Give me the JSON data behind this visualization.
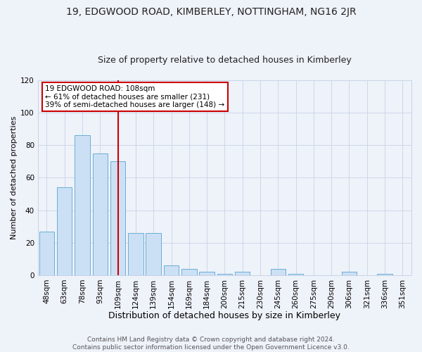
{
  "title": "19, EDGWOOD ROAD, KIMBERLEY, NOTTINGHAM, NG16 2JR",
  "subtitle": "Size of property relative to detached houses in Kimberley",
  "xlabel": "Distribution of detached houses by size in Kimberley",
  "ylabel": "Number of detached properties",
  "bar_labels": [
    "48sqm",
    "63sqm",
    "78sqm",
    "93sqm",
    "109sqm",
    "124sqm",
    "139sqm",
    "154sqm",
    "169sqm",
    "184sqm",
    "200sqm",
    "215sqm",
    "230sqm",
    "245sqm",
    "260sqm",
    "275sqm",
    "290sqm",
    "306sqm",
    "321sqm",
    "336sqm",
    "351sqm"
  ],
  "bar_values": [
    27,
    54,
    86,
    75,
    70,
    26,
    26,
    6,
    4,
    2,
    1,
    2,
    0,
    4,
    1,
    0,
    0,
    2,
    0,
    1,
    0
  ],
  "bar_color": "#cce0f5",
  "bar_edge_color": "#6aaed6",
  "vline_x_idx": 4,
  "vline_color": "#cc0000",
  "ylim": [
    0,
    120
  ],
  "yticks": [
    0,
    20,
    40,
    60,
    80,
    100,
    120
  ],
  "annotation_title": "19 EDGWOOD ROAD: 108sqm",
  "annotation_line1": "← 61% of detached houses are smaller (231)",
  "annotation_line2": "39% of semi-detached houses are larger (148) →",
  "annotation_box_color": "#ffffff",
  "annotation_box_edge": "#cc0000",
  "footer_line1": "Contains HM Land Registry data © Crown copyright and database right 2024.",
  "footer_line2": "Contains public sector information licensed under the Open Government Licence v3.0.",
  "background_color": "#eef2f9",
  "title_fontsize": 10,
  "subtitle_fontsize": 9,
  "xlabel_fontsize": 9,
  "ylabel_fontsize": 8,
  "tick_fontsize": 7.5,
  "footer_fontsize": 6.5
}
